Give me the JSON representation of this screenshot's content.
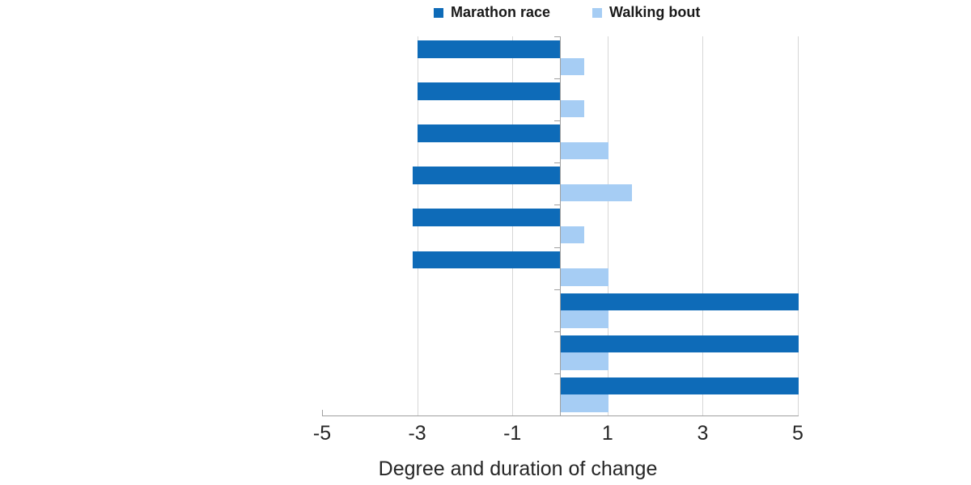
{
  "chart_data": {
    "type": "bar",
    "orientation": "horizontal",
    "xlabel": "Degree and duration of change",
    "xlim": [
      -5,
      5
    ],
    "xticks": [
      -5,
      -3,
      -1,
      1,
      3,
      5
    ],
    "grid": true,
    "legend_position": "top-center",
    "categories": [
      "",
      "",
      "",
      "",
      "",
      "",
      "",
      "",
      ""
    ],
    "series": [
      {
        "name": "Marathon race",
        "color": "#0e6bb8",
        "values": [
          -3,
          -3,
          -3,
          -3.1,
          -3.1,
          -3.1,
          5,
          5,
          5
        ]
      },
      {
        "name": "Walking bout",
        "color": "#a6cdf4",
        "values": [
          0.5,
          0.5,
          1,
          1.5,
          0.5,
          1,
          1,
          1,
          1
        ]
      }
    ],
    "colors": {
      "grid": "#d6d6d6",
      "axis": "#a0a0a0",
      "text": "#262626"
    }
  }
}
